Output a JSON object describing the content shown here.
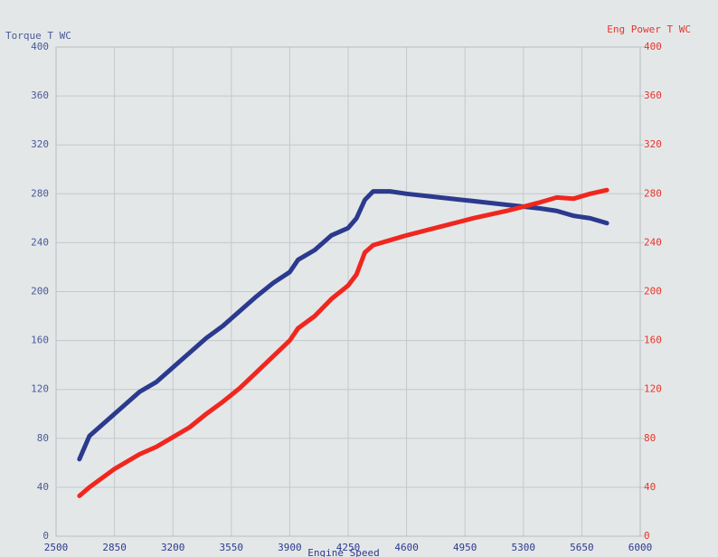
{
  "chart_data": {
    "type": "line",
    "y_label": "Torque T WC",
    "y2_label": "Eng Power T WC",
    "x_label": "Engine Speed",
    "x": [
      2640,
      2700,
      2850,
      3000,
      3100,
      3200,
      3300,
      3400,
      3500,
      3600,
      3700,
      3800,
      3900,
      3950,
      4050,
      4150,
      4250,
      4300,
      4350,
      4400,
      4500,
      4600,
      4800,
      5000,
      5200,
      5400,
      5500,
      5600,
      5700,
      5800
    ],
    "series": [
      {
        "name": "Torque T WC",
        "color": "#2b3a8e",
        "axis": "y",
        "values": [
          63,
          82,
          100,
          118,
          126,
          138,
          150,
          162,
          172,
          184,
          196,
          207,
          216,
          226,
          234,
          246,
          252,
          260,
          275,
          282,
          282,
          280,
          277,
          274,
          271,
          268,
          266,
          262,
          260,
          256
        ]
      },
      {
        "name": "Eng Power T WC",
        "color": "#f0271f",
        "axis": "y2",
        "values": [
          33,
          40,
          55,
          67,
          73,
          81,
          89,
          100,
          110,
          121,
          134,
          147,
          160,
          170,
          180,
          194,
          205,
          214,
          232,
          238,
          242,
          246,
          253,
          260,
          266,
          273,
          277,
          276,
          280,
          283
        ]
      }
    ],
    "xlim": [
      2500,
      6000
    ],
    "xticks": [
      2500,
      2850,
      3200,
      3550,
      3900,
      4250,
      4600,
      4950,
      5300,
      5650,
      6000
    ],
    "ylim": [
      0,
      400
    ],
    "yticks": [
      0,
      40,
      80,
      120,
      160,
      200,
      240,
      280,
      320,
      360,
      400
    ],
    "y2lim": [
      0,
      400
    ],
    "y2ticks": [
      0,
      40,
      80,
      120,
      160,
      200,
      240,
      280,
      320,
      360,
      400
    ],
    "grid": true
  }
}
